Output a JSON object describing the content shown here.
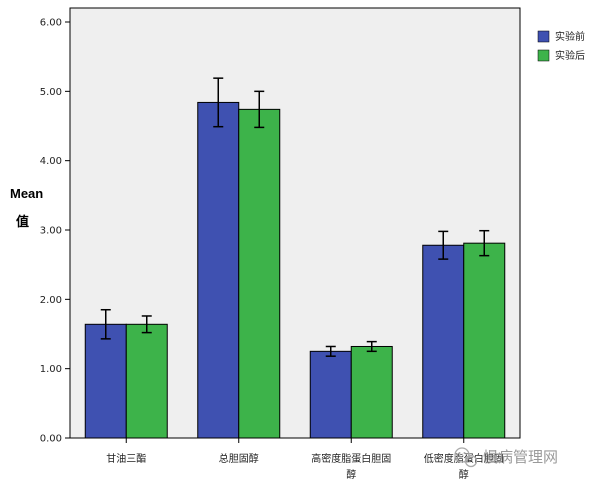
{
  "chart_data": {
    "type": "bar",
    "categories": [
      [
        "甘油三酯"
      ],
      [
        "总胆固醇"
      ],
      [
        "高密度脂蛋白胆固",
        "醇"
      ],
      [
        "低密度脂蛋白胆固",
        "醇"
      ]
    ],
    "series": [
      {
        "name": "实验前",
        "values": [
          1.64,
          4.84,
          1.25,
          2.78
        ],
        "error": [
          0.21,
          0.35,
          0.07,
          0.2
        ]
      },
      {
        "name": "实验后",
        "values": [
          1.64,
          4.74,
          1.32,
          2.81
        ],
        "error": [
          0.12,
          0.26,
          0.07,
          0.18
        ]
      }
    ],
    "title": "",
    "xlabel": "",
    "ylabel": [
      "Mean",
      "值"
    ],
    "ylim": [
      0,
      6
    ],
    "yticks": [
      "0.00",
      "1.00",
      "2.00",
      "3.00",
      "4.00",
      "5.00",
      "6.00"
    ],
    "legend_position": "right",
    "grid": false,
    "colors": {
      "before": "#3f51b1",
      "after": "#3db34a",
      "plot_bg": "#efefef"
    }
  },
  "watermark": {
    "text": "慢病管理网",
    "icon": "wechat-icon"
  }
}
